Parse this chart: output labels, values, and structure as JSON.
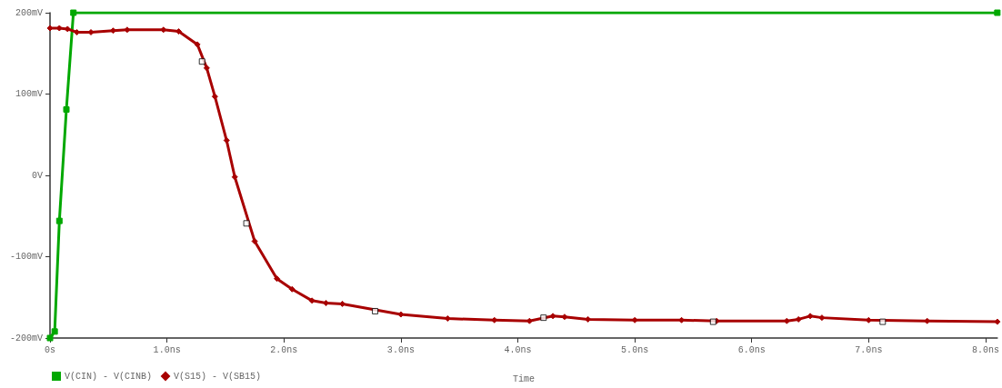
{
  "chart_data": {
    "type": "line",
    "xlabel": "Time",
    "xlim": [
      0,
      8.1
    ],
    "xticks": [
      {
        "value": 0,
        "label": "0s"
      },
      {
        "value": 1,
        "label": "1.0ns"
      },
      {
        "value": 2,
        "label": "2.0ns"
      },
      {
        "value": 3,
        "label": "3.0ns"
      },
      {
        "value": 4,
        "label": "4.0ns"
      },
      {
        "value": 5,
        "label": "5.0ns"
      },
      {
        "value": 6,
        "label": "6.0ns"
      },
      {
        "value": 7,
        "label": "7.0ns"
      },
      {
        "value": 8,
        "label": "8.0ns"
      }
    ],
    "ylim": [
      -200,
      200
    ],
    "yticks": [
      {
        "value": -200,
        "label": "-200mV"
      },
      {
        "value": -100,
        "label": "-100mV"
      },
      {
        "value": 0,
        "label": "0V"
      },
      {
        "value": 100,
        "label": "100mV"
      },
      {
        "value": 200,
        "label": "200mV"
      }
    ],
    "grid": false,
    "legend": "bottom left",
    "series": [
      {
        "name": "V(CIN) - V(CINB)",
        "color": "#00a800",
        "marker": "square",
        "x": [
          0,
          0.04,
          0.08,
          0.14,
          0.2,
          8.1
        ],
        "values": [
          -200,
          -192,
          -56,
          81,
          200,
          200
        ]
      },
      {
        "name": "V(S15) - V(SB15)",
        "color": "#a80000",
        "marker": "diamond",
        "x": [
          0,
          0.08,
          0.15,
          0.23,
          0.35,
          0.54,
          0.66,
          0.97,
          1.1,
          1.26,
          1.34,
          1.41,
          1.51,
          1.58,
          1.75,
          1.94,
          2.07,
          2.24,
          2.36,
          2.5,
          3.0,
          3.4,
          3.8,
          4.1,
          4.3,
          4.4,
          4.6,
          5.0,
          5.4,
          5.7,
          6.3,
          6.4,
          6.5,
          6.6,
          7.0,
          7.5,
          8.1
        ],
        "values": [
          181,
          181,
          180,
          176,
          176,
          178,
          179,
          179,
          177,
          161,
          132,
          97,
          43,
          -2,
          -81,
          -127,
          -140,
          -154,
          -157,
          -158,
          -171,
          -176,
          -178,
          -179,
          -173,
          -174,
          -177,
          -178,
          -178,
          -179,
          -179,
          -177,
          -173,
          -175,
          -178,
          -179,
          -180
        ]
      },
      {
        "type": "scatter",
        "color": "#ffffff",
        "marker": "square",
        "x": [
          1.3,
          1.68,
          2.78,
          4.22,
          5.67,
          7.12
        ],
        "values": [
          140,
          -59,
          -167,
          -175,
          -180,
          -180
        ]
      }
    ]
  }
}
